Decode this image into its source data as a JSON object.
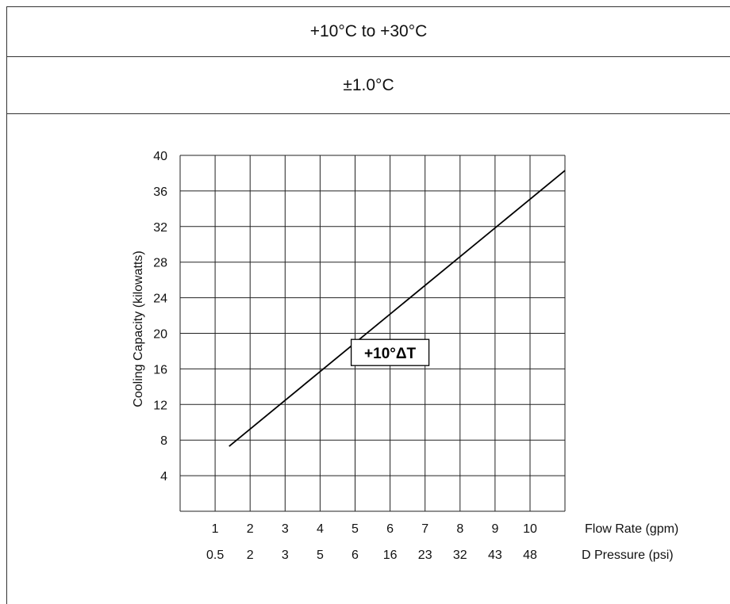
{
  "header": {
    "temperature_range": "+10°C to +30°C",
    "stability": "±1.0°C"
  },
  "chart_data": {
    "type": "line",
    "title": "",
    "ylabel": "Cooling Capacity (kilowatts)",
    "ylim": [
      0,
      40
    ],
    "yticks": [
      4,
      8,
      12,
      16,
      20,
      24,
      28,
      32,
      36,
      40
    ],
    "grid": true,
    "x_axes": [
      {
        "label": "Flow Rate (gpm)",
        "ticks": [
          "1",
          "2",
          "3",
          "4",
          "5",
          "6",
          "7",
          "8",
          "9",
          "10"
        ]
      },
      {
        "label": "D Pressure  (psi)",
        "ticks": [
          "0.5",
          "2",
          "3",
          "5",
          "6",
          "16",
          "23",
          "32",
          "43",
          "48"
        ]
      }
    ],
    "series": [
      {
        "name": "+10°ΔT",
        "x": [
          1.4,
          11.0
        ],
        "y": [
          7.3,
          38.3
        ]
      }
    ],
    "annotations": [
      {
        "text": "+10°ΔT",
        "x": 6.0,
        "y": 17.8
      }
    ]
  }
}
